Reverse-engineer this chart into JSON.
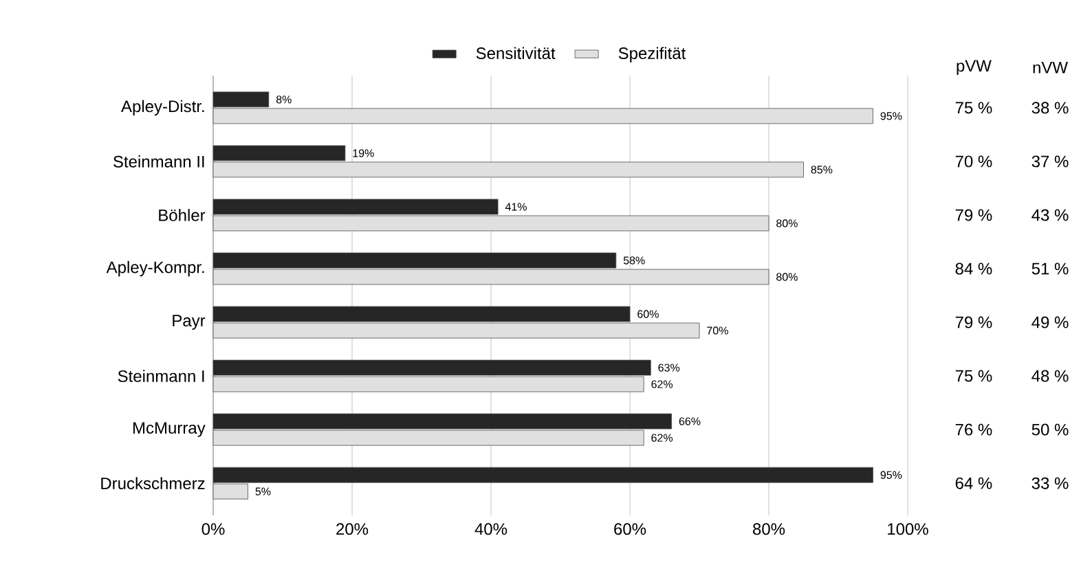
{
  "chart_data": {
    "type": "bar",
    "orientation": "horizontal",
    "categories": [
      "Apley-Distr.",
      "Steinmann II",
      "Böhler",
      "Apley-Kompr.",
      "Payr",
      "Steinmann I",
      "McMurray",
      "Druckschmerz"
    ],
    "series": [
      {
        "name": "Sensitivität",
        "color": "#262626",
        "values": [
          8,
          19,
          41,
          58,
          60,
          63,
          66,
          95
        ],
        "value_labels": [
          "8%",
          "19%",
          "41%",
          "58%",
          "60%",
          "63%",
          "66%",
          "95%"
        ]
      },
      {
        "name": "Spezifität",
        "color": "#e0e0e0",
        "values": [
          95,
          85,
          80,
          80,
          70,
          62,
          62,
          5
        ],
        "value_labels": [
          "95%",
          "85%",
          "80%",
          "80%",
          "70%",
          "62%",
          "62%",
          "5%"
        ]
      }
    ],
    "xlim": [
      0,
      100
    ],
    "xticks": [
      {
        "value": 0,
        "label": "0%"
      },
      {
        "value": 20,
        "label": "20%"
      },
      {
        "value": 40,
        "label": "40%"
      },
      {
        "value": 60,
        "label": "60%"
      },
      {
        "value": 80,
        "label": "80%"
      },
      {
        "value": 100,
        "label": "100%"
      }
    ],
    "grid": "x",
    "legend": "top",
    "annotations": [
      "pVW",
      "nVW",
      "75 %",
      "38 %",
      "70 %",
      "37 %",
      "79 %",
      "43 %",
      "84 %",
      "51 %",
      "79 %",
      "49 %",
      "75 %",
      "48 %",
      "76 %",
      "50 %",
      "64 %",
      "33 %"
    ]
  }
}
